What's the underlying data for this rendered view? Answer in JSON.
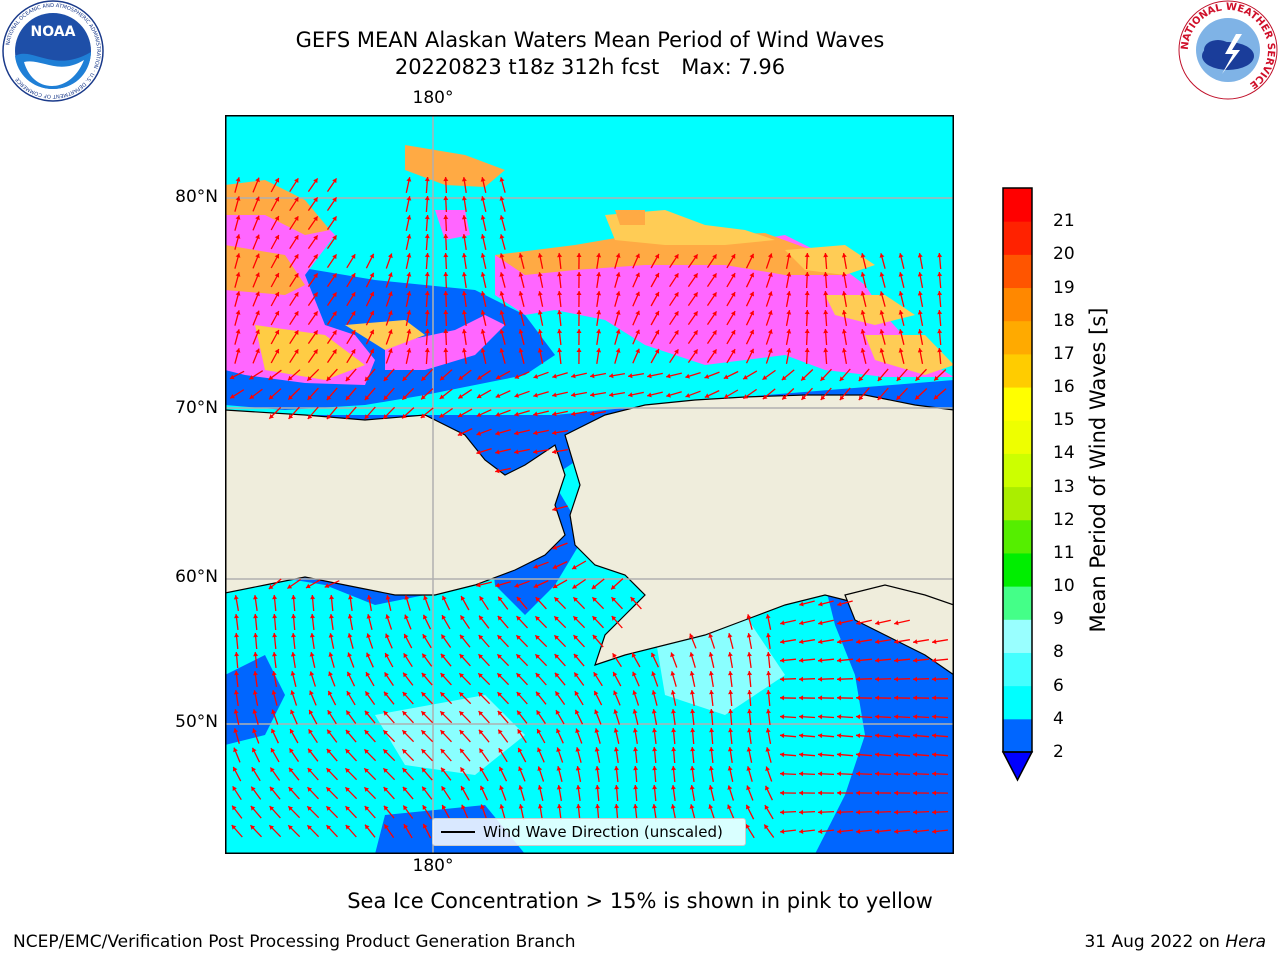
{
  "title": {
    "line1": "GEFS MEAN Alaskan Waters Mean Period of Wind Waves",
    "line2_run": "20220823 t18z 312h fcst",
    "line2_max": "Max: 7.96"
  },
  "map": {
    "lon_label_top": "180°",
    "lon_label_bottom": "180°",
    "lat_labels": [
      "80°N",
      "70°N",
      "60°N",
      "50°N"
    ],
    "land_color": "#efeddc",
    "ocean_color": "#00ffff",
    "arrow_color": "#ff0000",
    "grid_color": "#b0b0b0",
    "legend_text": "Wind Wave Direction (unscaled)"
  },
  "colorbar": {
    "label": "Mean Period of Wind Waves [s]",
    "ticks": [
      "2",
      "4",
      "6",
      "8",
      "9",
      "10",
      "11",
      "12",
      "13",
      "14",
      "15",
      "16",
      "17",
      "18",
      "19",
      "20",
      "21"
    ],
    "colors": [
      "#0066ff",
      "#00ffff",
      "#44ffff",
      "#99ffff",
      "#44ff88",
      "#00ee00",
      "#55ee00",
      "#aaee00",
      "#ccff00",
      "#eeff00",
      "#ffff00",
      "#ffcc00",
      "#ffaa00",
      "#ff8800",
      "#ff5500",
      "#ff2200",
      "#ff0000"
    ],
    "extend_color": "#0000ff"
  },
  "caption": "Sea Ice Concentration > 15% is shown in pink to yellow",
  "footer": {
    "left": "NCEP/EMC/Verification Post Processing Product Generation Branch",
    "right_date": "31 Aug 2022 on",
    "right_machine": "Hera"
  },
  "logos": {
    "noaa_text": "NOAA",
    "noaa_ring": "NATIONAL OCEANIC AND ATMOSPHERIC ADMINISTRATION · U.S. DEPARTMENT OF COMMERCE",
    "nws_ring": "NATIONAL WEATHER SERVICE"
  }
}
